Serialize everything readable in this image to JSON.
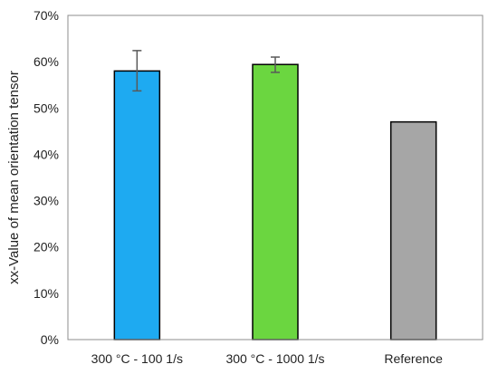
{
  "chart_data": {
    "type": "bar",
    "categories": [
      "300 °C - 100 1/s",
      "300 °C - 1000 1/s",
      "Reference"
    ],
    "values": [
      0.58,
      0.594,
      0.47
    ],
    "error_low": [
      0.537,
      0.577,
      null
    ],
    "error_high": [
      0.624,
      0.61,
      null
    ],
    "bar_colors": [
      "#1EAAF1",
      "#6BD640",
      "#A6A6A6"
    ],
    "ylabel": "xx-Value of mean orientation tensor",
    "xlabel": "",
    "ylim": [
      0,
      0.7
    ],
    "yticks": [
      0,
      0.1,
      0.2,
      0.3,
      0.4,
      0.5,
      0.6,
      0.7
    ],
    "ytick_labels": [
      "0%",
      "10%",
      "20%",
      "30%",
      "40%",
      "50%",
      "60%",
      "70%"
    ],
    "grid": false,
    "legend": "none"
  }
}
